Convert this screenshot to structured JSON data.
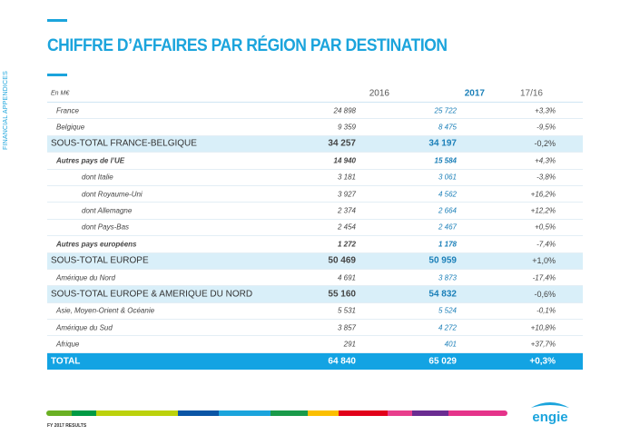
{
  "title": "CHIFFRE D’AFFAIRES PAR RÉGION PAR DESTINATION",
  "side_label": "FINANCIAL APPENDICES",
  "table": {
    "headers": {
      "unit": "En M€",
      "y2016": "2016",
      "y2017": "2017",
      "var": "17/16"
    },
    "rows": [
      {
        "label": "France",
        "v2016": "24 898",
        "v2017": "25 722",
        "var": "+3,3%",
        "style": "ind1"
      },
      {
        "label": "Belgique",
        "v2016": "9 359",
        "v2017": "8 475",
        "var": "-9,5%",
        "style": "ind1"
      },
      {
        "label": "SOUS-TOTAL FRANCE-BELGIQUE",
        "v2016": "34 257",
        "v2017": "34 197",
        "var": "-0,2%",
        "style": "sub"
      },
      {
        "label": "Autres pays de l’UE",
        "v2016": "14 940",
        "v2017": "15 584",
        "var": "+4,3%",
        "style": "b"
      },
      {
        "label": "dont Italie",
        "v2016": "3 181",
        "v2017": "3 061",
        "var": "-3,8%",
        "style": "ind2"
      },
      {
        "label": "dont Royaume-Uni",
        "v2016": "3 927",
        "v2017": "4 562",
        "var": "+16,2%",
        "style": "ind2"
      },
      {
        "label": "dont Allemagne",
        "v2016": "2 374",
        "v2017": "2 664",
        "var": "+12,2%",
        "style": "ind2"
      },
      {
        "label": "dont Pays-Bas",
        "v2016": "2 454",
        "v2017": "2 467",
        "var": "+0,5%",
        "style": "ind2"
      },
      {
        "label": "Autres pays européens",
        "v2016": "1 272",
        "v2017": "1 178",
        "var": "-7,4%",
        "style": "b"
      },
      {
        "label": "SOUS-TOTAL EUROPE",
        "v2016": "50 469",
        "v2017": "50 959",
        "var": "+1,0%",
        "style": "sub"
      },
      {
        "label": "Amérique du Nord",
        "v2016": "4 691",
        "v2017": "3 873",
        "var": "-17,4%",
        "style": "ind1"
      },
      {
        "label": "SOUS-TOTAL EUROPE & AMERIQUE DU NORD",
        "v2016": "55 160",
        "v2017": "54 832",
        "var": "-0,6%",
        "style": "sub"
      },
      {
        "label": "Asie, Moyen-Orient & Océanie",
        "v2016": "5 531",
        "v2017": "5 524",
        "var": "-0,1%",
        "style": "ind1"
      },
      {
        "label": "Amérique du Sud",
        "v2016": "3 857",
        "v2017": "4 272",
        "var": "+10,8%",
        "style": "ind1"
      },
      {
        "label": "Afrique",
        "v2016": "291",
        "v2017": "401",
        "var": "+37,7%",
        "style": "ind1"
      },
      {
        "label": "TOTAL",
        "v2016": "64 840",
        "v2017": "65 029",
        "var": "+0,3%",
        "style": "tot"
      }
    ]
  },
  "footer": "FY 2017 RESULTS",
  "logo_text": "engie",
  "colors": {
    "accent": "#1ba4dc",
    "subtotal_bg": "#d9eff9",
    "total_bg": "#13a3e3",
    "value_2017": "#1a7fb8"
  },
  "color_bar": [
    "#6ab023",
    "#009a44",
    "#bcd20b",
    "#0a55a5",
    "#1ba4dc",
    "#1a9a4a",
    "#fbbf00",
    "#e2001a",
    "#e83e8c",
    "#6a2c91",
    "#e5338a"
  ]
}
